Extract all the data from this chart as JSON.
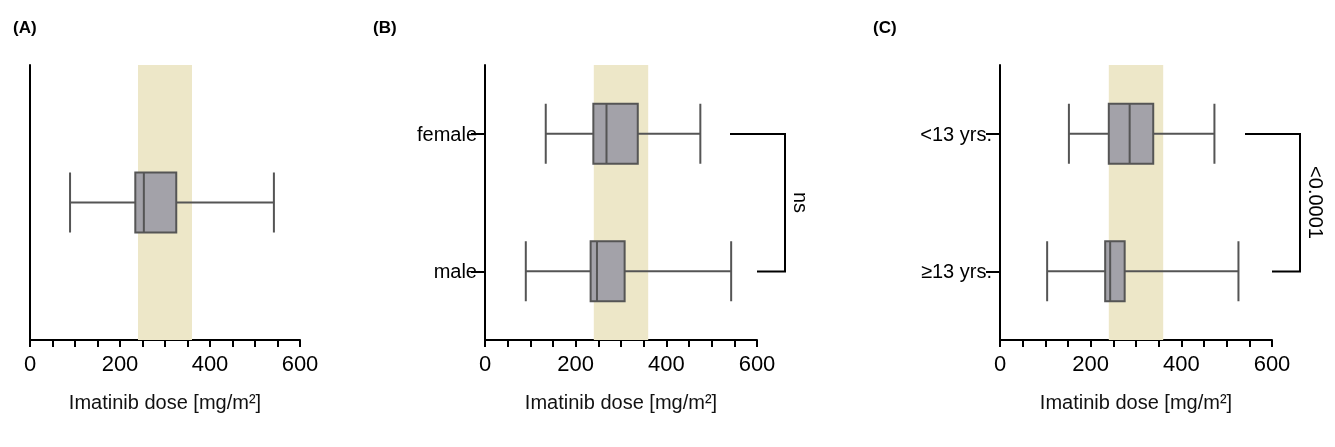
{
  "chart_data": [
    {
      "type": "box",
      "title": "(A)",
      "orientation": "horizontal",
      "xlabel": "Imatinib dose [mg/m²]",
      "categories": [
        null
      ],
      "color": "#a3a2a9",
      "boxes": [
        {
          "low": 89,
          "q1": 234,
          "median": 253,
          "q3": 325,
          "high": 542
        }
      ],
      "xlim": [
        0,
        600
      ],
      "xticks": [
        0,
        {
          "value": 50,
          "label": null
        },
        {
          "value": 100,
          "label": null
        },
        {
          "value": 150,
          "label": null
        },
        200,
        {
          "value": 250,
          "label": null
        },
        {
          "value": 300,
          "label": null
        },
        {
          "value": 350,
          "label": null
        },
        400,
        {
          "value": 450,
          "label": null
        },
        {
          "value": 500,
          "label": null
        },
        {
          "value": 550,
          "label": null
        },
        600
      ],
      "bands": [
        {
          "axis": "x",
          "from": 240,
          "to": 360,
          "color": "#ede7c8"
        }
      ],
      "grid": false
    },
    {
      "type": "box",
      "title": "(B)",
      "orientation": "horizontal",
      "xlabel": "Imatinib dose [mg/m²]",
      "categories": [
        "female",
        "male"
      ],
      "color": "#a3a2a9",
      "boxes": [
        {
          "low": 134,
          "q1": 239,
          "median": 268,
          "q3": 337,
          "high": 475
        },
        {
          "low": 90,
          "q1": 233,
          "median": 247,
          "q3": 308,
          "high": 543
        }
      ],
      "xlim": [
        0,
        600
      ],
      "xticks": [
        0,
        {
          "value": 50,
          "label": null
        },
        {
          "value": 100,
          "label": null
        },
        {
          "value": 150,
          "label": null
        },
        200,
        {
          "value": 250,
          "label": null
        },
        {
          "value": 300,
          "label": null
        },
        {
          "value": 350,
          "label": null
        },
        400,
        {
          "value": 450,
          "label": null
        },
        {
          "value": 500,
          "label": null
        },
        {
          "value": 550,
          "label": null
        },
        600
      ],
      "bands": [
        {
          "axis": "x",
          "from": 240,
          "to": 360,
          "color": "#ede7c8"
        }
      ],
      "grid": false,
      "annotations": [
        "ns"
      ]
    },
    {
      "type": "box",
      "title": "(C)",
      "orientation": "horizontal",
      "xlabel": "Imatinib dose [mg/m²]",
      "categories": [
        "<13 yrs.",
        "≥13 yrs."
      ],
      "color": "#a3a2a9",
      "boxes": [
        {
          "low": 152,
          "q1": 240,
          "median": 286,
          "q3": 338,
          "high": 473
        },
        {
          "low": 104,
          "q1": 232,
          "median": 243,
          "q3": 275,
          "high": 526
        }
      ],
      "xlim": [
        0,
        600
      ],
      "xticks": [
        0,
        {
          "value": 50,
          "label": null
        },
        {
          "value": 100,
          "label": null
        },
        {
          "value": 150,
          "label": null
        },
        200,
        {
          "value": 250,
          "label": null
        },
        {
          "value": 300,
          "label": null
        },
        {
          "value": 350,
          "label": null
        },
        400,
        {
          "value": 450,
          "label": null
        },
        {
          "value": 500,
          "label": null
        },
        {
          "value": 550,
          "label": null
        },
        600
      ],
      "bands": [
        {
          "axis": "x",
          "from": 240,
          "to": 360,
          "color": "#ede7c8"
        }
      ],
      "grid": false,
      "annotations": [
        "<0.0001"
      ]
    }
  ]
}
